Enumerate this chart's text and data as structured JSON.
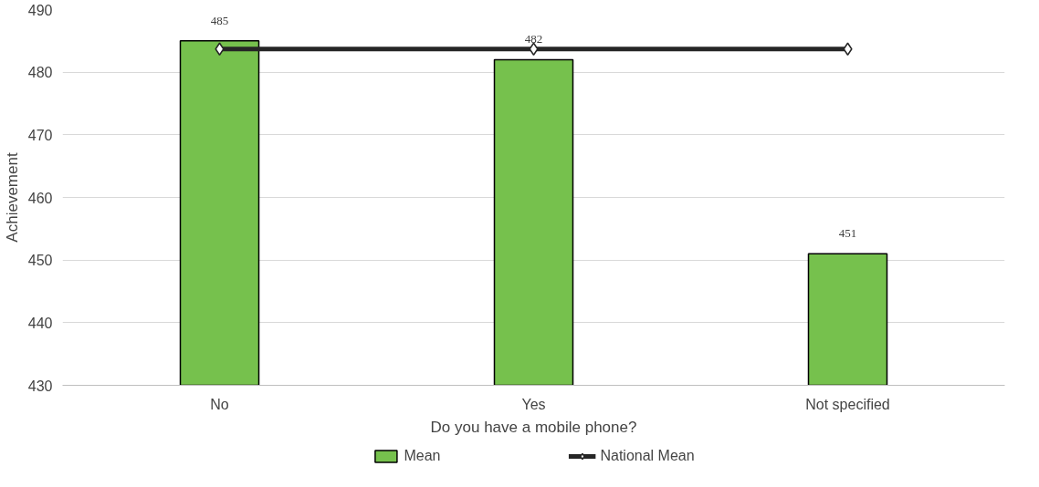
{
  "chart_data": {
    "type": "bar",
    "xlabel": "Do you have a mobile phone?",
    "ylabel": "Achievement",
    "categories": [
      "No",
      "Yes",
      "Not specified"
    ],
    "series": [
      {
        "name": "Mean",
        "color": "#76c14d",
        "values": [
          485,
          482,
          451
        ],
        "value_labels": [
          "485",
          "482",
          "451"
        ]
      },
      {
        "name": "National Mean",
        "type": "line",
        "color": "#262626",
        "values": [
          483.7,
          483.7,
          483.7
        ],
        "marker": "diamond"
      }
    ],
    "ylim": [
      430,
      490
    ],
    "yticks": [
      430,
      440,
      450,
      460,
      470,
      480,
      490
    ],
    "grid": "y",
    "legend": "bottom"
  }
}
